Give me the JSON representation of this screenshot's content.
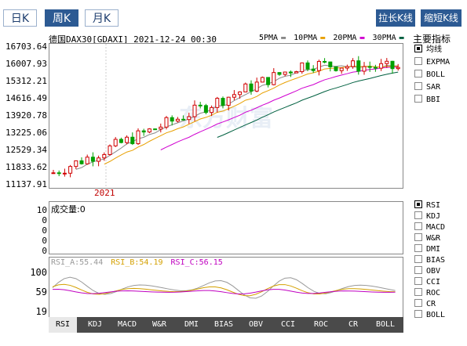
{
  "period_tabs": [
    {
      "label": "日K",
      "active": false
    },
    {
      "label": "周K",
      "active": true
    },
    {
      "label": "月K",
      "active": false
    }
  ],
  "zoom": {
    "stretch": "拉长K线",
    "shorten": "缩短K线"
  },
  "chart_header": {
    "title": "德国DAX30[GDAXI] 2021-12-24 00:30",
    "ma": [
      {
        "label": "5PMA",
        "color": "#888888"
      },
      {
        "label": "10PMA",
        "color": "#e8a000"
      },
      {
        "label": "20PMA",
        "color": "#d000d0"
      },
      {
        "label": "30PMA",
        "color": "#006040"
      }
    ]
  },
  "price_axis": [
    "16703.64",
    "16007.93",
    "15312.21",
    "14616.49",
    "13920.78",
    "13225.06",
    "12529.34",
    "11833.62",
    "11137.91"
  ],
  "year_label": "2021",
  "watermark": "东方财富",
  "volume": {
    "label": "成交量:0",
    "axis": [
      "10",
      "0",
      "0",
      "0",
      "0"
    ]
  },
  "rsi": {
    "labels": [
      {
        "text": "RSI_A:55.44",
        "color": "#999999"
      },
      {
        "text": "RSI_B:54.19",
        "color": "#d4a000"
      },
      {
        "text": "RSI_C:56.15",
        "color": "#c000c0"
      }
    ],
    "axis": [
      "100",
      "59",
      "19"
    ]
  },
  "indicators": {
    "title": "主要指标",
    "main": [
      {
        "label": "均线",
        "checked": true
      },
      {
        "label": "EXPMA",
        "checked": false
      },
      {
        "label": "BOLL",
        "checked": false
      },
      {
        "label": "SAR",
        "checked": false
      },
      {
        "label": "BBI",
        "checked": false
      }
    ],
    "sub": [
      {
        "label": "RSI",
        "checked": true
      },
      {
        "label": "KDJ",
        "checked": false
      },
      {
        "label": "MACD",
        "checked": false
      },
      {
        "label": "W&R",
        "checked": false
      },
      {
        "label": "DMI",
        "checked": false
      },
      {
        "label": "BIAS",
        "checked": false
      },
      {
        "label": "OBV",
        "checked": false
      },
      {
        "label": "CCI",
        "checked": false
      },
      {
        "label": "ROC",
        "checked": false
      },
      {
        "label": "CR",
        "checked": false
      },
      {
        "label": "BOLL",
        "checked": false
      }
    ]
  },
  "bottom_tabs": [
    "RSI",
    "KDJ",
    "MACD",
    "W&R",
    "DMI",
    "BIAS",
    "OBV",
    "CCI",
    "ROC",
    "CR",
    "BOLL"
  ],
  "colors": {
    "up": "#d00000",
    "down": "#00a000",
    "accent": "#2c5a93"
  }
}
